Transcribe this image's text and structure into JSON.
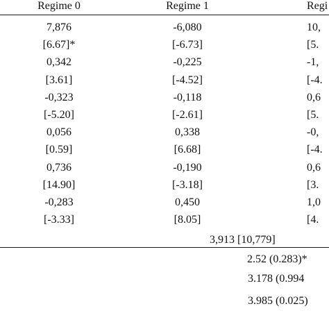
{
  "headers": [
    "Regime 0",
    "Regime 1",
    "Regi"
  ],
  "rows": [
    [
      "7,876",
      "-6,080",
      "10,"
    ],
    [
      "[6.67]*",
      "[-6.73]",
      "[5."
    ],
    [
      "0,342",
      "-0,225",
      "-1,"
    ],
    [
      "[3.61]",
      "[-4.52]",
      "[-4."
    ],
    [
      "-0,323",
      "-0,118",
      "0,6"
    ],
    [
      "[-5.20]",
      "[-2.61]",
      "[5."
    ],
    [
      "0,056",
      "0,338",
      "-0,"
    ],
    [
      "[0.59]",
      "[6.68]",
      "[-4."
    ],
    [
      "0,736",
      "-0,190",
      "0,6"
    ],
    [
      "[14.90]",
      "[-3.18]",
      "[3."
    ],
    [
      "-0,283",
      "0,450",
      "1,0"
    ],
    [
      "[-3.33]",
      "[8.05]",
      "[4."
    ]
  ],
  "bottom_value": "3,913 [10,779]",
  "stats": [
    "2.52 (0.283)*",
    "3.178 (0.994",
    "3.985 (0.025)"
  ]
}
